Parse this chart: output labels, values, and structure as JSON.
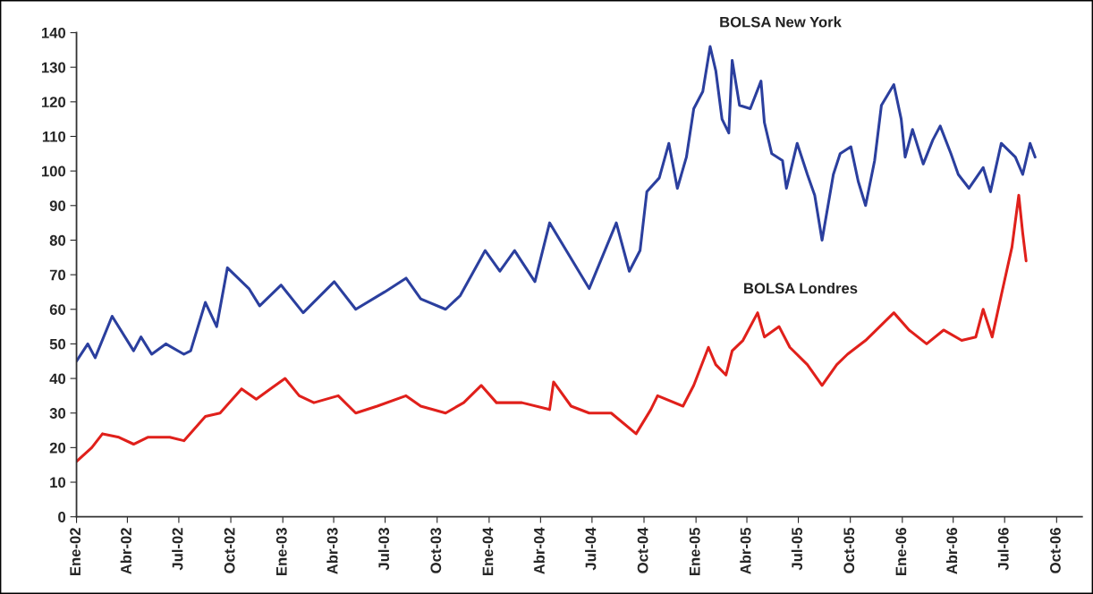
{
  "chart_data": {
    "type": "line",
    "xlim": [
      "2002-01-01",
      "2006-11-15"
    ],
    "xticks": [
      {
        "value": "2002-01",
        "label": "Ene-02"
      },
      {
        "value": "2002-04",
        "label": "Abr-02"
      },
      {
        "value": "2002-07",
        "label": "Jul-02"
      },
      {
        "value": "2002-10",
        "label": "Oct-02"
      },
      {
        "value": "2003-01",
        "label": "Ene-03"
      },
      {
        "value": "2003-04",
        "label": "Abr-03"
      },
      {
        "value": "2003-07",
        "label": "Jul-03"
      },
      {
        "value": "2003-10",
        "label": "Oct-03"
      },
      {
        "value": "2004-01",
        "label": "Ene-04"
      },
      {
        "value": "2004-04",
        "label": "Abr-04"
      },
      {
        "value": "2004-07",
        "label": "Jul-04"
      },
      {
        "value": "2004-10",
        "label": "Oct-04"
      },
      {
        "value": "2005-01",
        "label": "Ene-05"
      },
      {
        "value": "2005-04",
        "label": "Abr-05"
      },
      {
        "value": "2005-07",
        "label": "Jul-05"
      },
      {
        "value": "2005-10",
        "label": "Oct-05"
      },
      {
        "value": "2006-01",
        "label": "Ene-06"
      },
      {
        "value": "2006-04",
        "label": "Abr-06"
      },
      {
        "value": "2006-07",
        "label": "Jul-06"
      },
      {
        "value": "2006-10",
        "label": "Oct-06"
      }
    ],
    "ylim": [
      0,
      140
    ],
    "yticks": [
      0,
      10,
      20,
      30,
      40,
      50,
      60,
      70,
      80,
      90,
      100,
      110,
      120,
      130,
      140
    ],
    "grid": false,
    "marker": "none",
    "line_style": "solid",
    "series": [
      {
        "name": "BOLSA New York",
        "color": "#2b3f9e",
        "x": [
          "2002-01-01",
          "2002-01-21",
          "2002-02-03",
          "2002-03-05",
          "2002-04-12",
          "2002-04-25",
          "2002-05-14",
          "2002-06-08",
          "2002-07-10",
          "2002-07-22",
          "2002-08-17",
          "2002-09-06",
          "2002-09-25",
          "2002-11-02",
          "2002-11-21",
          "2002-12-29",
          "2003-02-06",
          "2003-04-02",
          "2003-05-10",
          "2003-06-30",
          "2003-08-07",
          "2003-09-02",
          "2003-10-16",
          "2003-11-11",
          "2003-12-25",
          "2004-01-20",
          "2004-02-15",
          "2004-03-22",
          "2004-04-17",
          "2004-06-26",
          "2004-08-13",
          "2004-09-05",
          "2004-09-24",
          "2004-10-06",
          "2004-10-28",
          "2004-11-14",
          "2004-11-29",
          "2004-12-15",
          "2004-12-28",
          "2005-01-13",
          "2005-01-26",
          "2005-02-05",
          "2005-02-16",
          "2005-02-28",
          "2005-03-06",
          "2005-03-19",
          "2005-04-07",
          "2005-04-26",
          "2005-05-02",
          "2005-05-15",
          "2005-06-03",
          "2005-06-10",
          "2005-06-29",
          "2005-07-17",
          "2005-07-30",
          "2005-08-12",
          "2005-09-01",
          "2005-09-13",
          "2005-10-02",
          "2005-10-15",
          "2005-10-28",
          "2005-11-13",
          "2005-11-25",
          "2005-12-17",
          "2005-12-30",
          "2006-01-06",
          "2006-01-19",
          "2006-02-07",
          "2006-02-24",
          "2006-03-09",
          "2006-03-28",
          "2006-04-10",
          "2006-04-29",
          "2006-05-24",
          "2006-06-06",
          "2006-06-25",
          "2006-07-20",
          "2006-08-02",
          "2006-08-15",
          "2006-08-24"
        ],
        "values": [
          45,
          50,
          46,
          58,
          48,
          52,
          47,
          50,
          47,
          48,
          62,
          55,
          72,
          66,
          61,
          67,
          59,
          68,
          60,
          65,
          69,
          63,
          60,
          64,
          77,
          71,
          77,
          68,
          85,
          66,
          85,
          71,
          77,
          94,
          98,
          108,
          95,
          104,
          118,
          123,
          136,
          129,
          115,
          111,
          132,
          119,
          118,
          126,
          114,
          105,
          103,
          95,
          108,
          99,
          93,
          80,
          99,
          105,
          107,
          97,
          90,
          103,
          119,
          125,
          115,
          104,
          112,
          102,
          109,
          113,
          105,
          99,
          95,
          101,
          94,
          108,
          104,
          99,
          108,
          104
        ]
      },
      {
        "name": "BOLSA Londres",
        "color": "#e0201b",
        "x": [
          "2002-01-01",
          "2002-01-28",
          "2002-02-16",
          "2002-03-17",
          "2002-04-12",
          "2002-05-07",
          "2002-06-15",
          "2002-07-10",
          "2002-08-17",
          "2002-09-12",
          "2002-10-20",
          "2002-11-15",
          "2002-12-10",
          "2003-01-05",
          "2003-01-30",
          "2003-02-25",
          "2003-04-09",
          "2003-05-10",
          "2003-06-17",
          "2003-08-07",
          "2003-09-02",
          "2003-10-16",
          "2003-11-17",
          "2003-12-18",
          "2004-01-14",
          "2004-02-28",
          "2004-04-17",
          "2004-04-24",
          "2004-05-25",
          "2004-06-26",
          "2004-08-04",
          "2004-09-17",
          "2004-10-13",
          "2004-10-25",
          "2004-12-09",
          "2004-12-28",
          "2005-01-23",
          "2005-02-05",
          "2005-02-23",
          "2005-03-06",
          "2005-03-25",
          "2005-04-20",
          "2005-05-02",
          "2005-05-28",
          "2005-06-16",
          "2005-07-17",
          "2005-08-12",
          "2005-09-07",
          "2005-09-26",
          "2005-10-28",
          "2005-11-22",
          "2005-12-17",
          "2006-01-13",
          "2006-02-13",
          "2006-03-15",
          "2006-04-16",
          "2006-05-11",
          "2006-05-24",
          "2006-06-09",
          "2006-06-25",
          "2006-07-14",
          "2006-07-26",
          "2006-08-02",
          "2006-08-08"
        ],
        "values": [
          16,
          20,
          24,
          23,
          21,
          23,
          23,
          22,
          29,
          30,
          37,
          34,
          37,
          40,
          35,
          33,
          35,
          30,
          32,
          35,
          32,
          30,
          33,
          38,
          33,
          33,
          31,
          39,
          32,
          30,
          30,
          24,
          31,
          35,
          32,
          38,
          49,
          44,
          41,
          48,
          51,
          59,
          52,
          55,
          49,
          44,
          38,
          44,
          47,
          51,
          55,
          59,
          54,
          50,
          54,
          51,
          52,
          60,
          52,
          64,
          78,
          93,
          82,
          74
        ]
      }
    ]
  }
}
